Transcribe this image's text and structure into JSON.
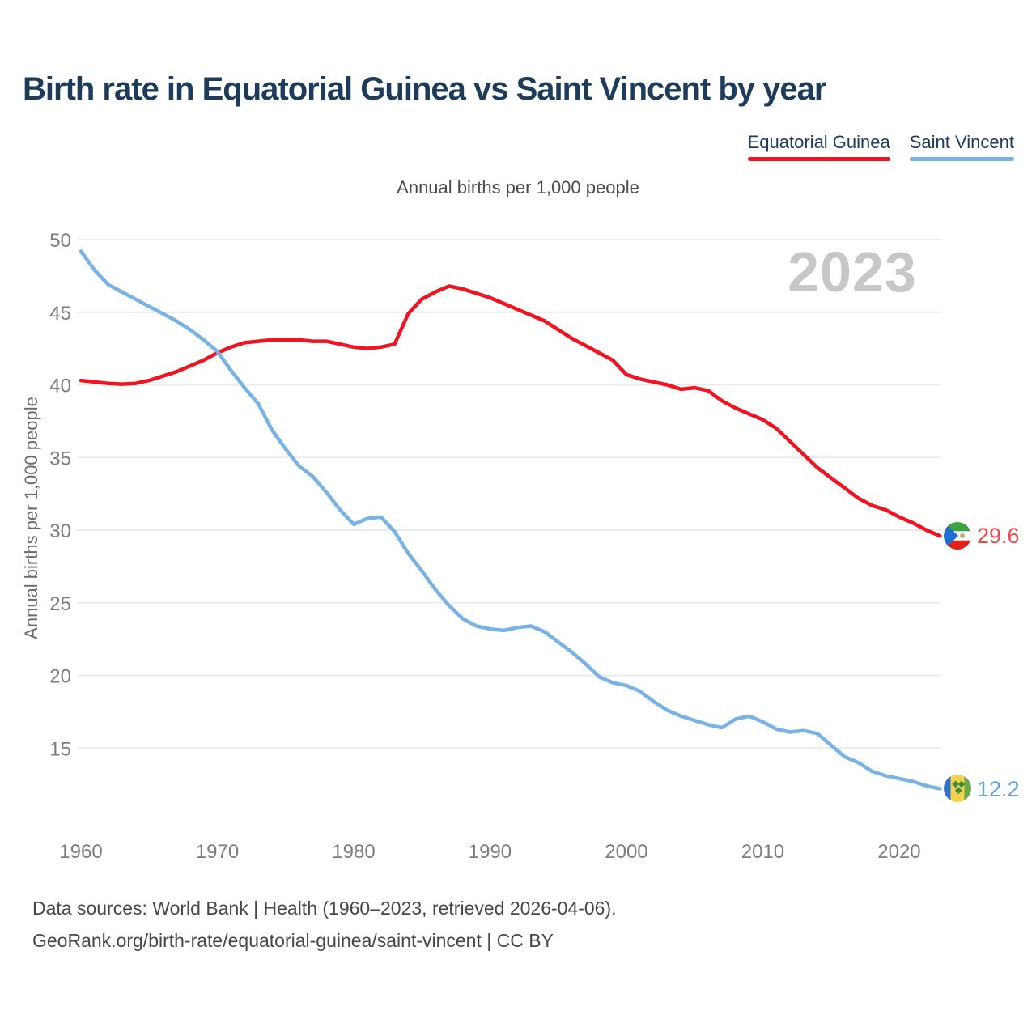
{
  "page": {
    "title": "Birth rate in Equatorial Guinea vs Saint Vincent by year",
    "subtitle": "Annual births per 1,000 people",
    "watermark": "2023",
    "footer_line1": "Data sources: World Bank | Health (1960–2023, retrieved 2026-04-06).",
    "footer_line2": "GeoRank.org/birth-rate/equatorial-guinea/saint-vincent | CC BY"
  },
  "legend": [
    {
      "label": "Equatorial Guinea",
      "color": "#ef1420"
    },
    {
      "label": "Saint Vincent",
      "color": "#79b2e4"
    }
  ],
  "end_labels": [
    {
      "series": "Equatorial Guinea",
      "value": "29.6",
      "color": "#ef474e",
      "flag": "equatorial-guinea-flag"
    },
    {
      "series": "Saint Vincent",
      "value": "12.2",
      "color": "#63a2dd",
      "flag": "saint-vincent-flag"
    }
  ],
  "chart_data": {
    "type": "line",
    "title": "Birth rate in Equatorial Guinea vs Saint Vincent by year",
    "xlabel": "",
    "ylabel": "Annual births per 1,000 people",
    "grid": "horizontal",
    "legend_position": "top-right",
    "xlim": [
      1960,
      2023
    ],
    "ylim": [
      10,
      51
    ],
    "xticks": [
      1960,
      1970,
      1980,
      1990,
      2000,
      2010,
      2020
    ],
    "yticks": [
      50,
      45,
      40,
      35,
      30,
      25,
      20,
      15
    ],
    "x": [
      1960,
      1961,
      1962,
      1963,
      1964,
      1965,
      1966,
      1967,
      1968,
      1969,
      1970,
      1971,
      1972,
      1973,
      1974,
      1975,
      1976,
      1977,
      1978,
      1979,
      1980,
      1981,
      1982,
      1983,
      1984,
      1985,
      1986,
      1987,
      1988,
      1989,
      1990,
      1991,
      1992,
      1993,
      1994,
      1995,
      1996,
      1997,
      1998,
      1999,
      2000,
      2001,
      2002,
      2003,
      2004,
      2005,
      2006,
      2007,
      2008,
      2009,
      2010,
      2011,
      2012,
      2013,
      2014,
      2015,
      2016,
      2017,
      2018,
      2019,
      2020,
      2021,
      2022,
      2023
    ],
    "series": [
      {
        "name": "Equatorial Guinea",
        "color": "#ef1420",
        "values": [
          40.3,
          40.2,
          40.1,
          40.05,
          40.1,
          40.3,
          40.6,
          40.9,
          41.3,
          41.7,
          42.2,
          42.6,
          42.9,
          43.0,
          43.1,
          43.1,
          43.1,
          43.0,
          43.0,
          42.8,
          42.6,
          42.5,
          42.6,
          42.8,
          44.9,
          45.9,
          46.4,
          46.8,
          46.6,
          46.3,
          46.0,
          45.6,
          45.2,
          44.8,
          44.4,
          43.8,
          43.2,
          42.7,
          42.2,
          41.7,
          40.7,
          40.4,
          40.2,
          40.0,
          39.7,
          39.8,
          39.6,
          38.9,
          38.4,
          38.0,
          37.6,
          37.0,
          36.1,
          35.2,
          34.3,
          33.6,
          32.9,
          32.2,
          31.7,
          31.4,
          30.9,
          30.5,
          30.0,
          29.6
        ]
      },
      {
        "name": "Saint Vincent",
        "color": "#79b2e4",
        "values": [
          49.2,
          47.9,
          46.9,
          46.4,
          45.9,
          45.4,
          44.9,
          44.4,
          43.8,
          43.1,
          42.3,
          41.0,
          39.8,
          38.7,
          36.9,
          35.6,
          34.4,
          33.7,
          32.6,
          31.4,
          30.4,
          30.8,
          30.9,
          29.9,
          28.4,
          27.2,
          25.9,
          24.8,
          23.9,
          23.4,
          23.2,
          23.1,
          23.3,
          23.4,
          23.0,
          22.3,
          21.6,
          20.8,
          19.9,
          19.5,
          19.3,
          18.9,
          18.2,
          17.6,
          17.2,
          16.9,
          16.6,
          16.4,
          17.0,
          17.2,
          16.8,
          16.3,
          16.1,
          16.2,
          16.0,
          15.2,
          14.4,
          14.0,
          13.4,
          13.1,
          12.9,
          12.7,
          12.4,
          12.2
        ]
      }
    ]
  }
}
